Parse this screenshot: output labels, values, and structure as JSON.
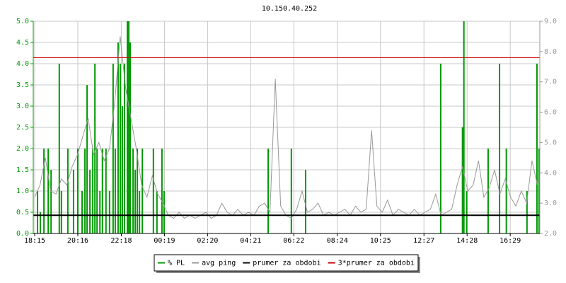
{
  "chart_data": {
    "type": "ping",
    "title": "10.150.40.252",
    "xlim": [
      -4,
      1417
    ],
    "xticks": [
      {
        "value": 0,
        "label": "18:15"
      },
      {
        "value": 121,
        "label": "20:16"
      },
      {
        "value": 243,
        "label": "22:18"
      },
      {
        "value": 364,
        "label": "00:19"
      },
      {
        "value": 485,
        "label": "02:20"
      },
      {
        "value": 606,
        "label": "04:21"
      },
      {
        "value": 727,
        "label": "06:22"
      },
      {
        "value": 849,
        "label": "08:24"
      },
      {
        "value": 970,
        "label": "10:25"
      },
      {
        "value": 1092,
        "label": "12:27"
      },
      {
        "value": 1213,
        "label": "14:28"
      },
      {
        "value": 1334,
        "label": "16:29"
      }
    ],
    "ylim": [
      0,
      5
    ],
    "yticks": [
      {
        "value": 0,
        "label": "0.0"
      },
      {
        "value": 0.5,
        "label": "0.5"
      },
      {
        "value": 1,
        "label": "1.0"
      },
      {
        "value": 1.5,
        "label": "1.5"
      },
      {
        "value": 2,
        "label": "2.0"
      },
      {
        "value": 2.5,
        "label": "2.5"
      },
      {
        "value": 3,
        "label": "3.0"
      },
      {
        "value": 3.5,
        "label": "3.5"
      },
      {
        "value": 4,
        "label": "4.0"
      },
      {
        "value": 4.5,
        "label": "4.5"
      },
      {
        "value": 5,
        "label": "5.0"
      }
    ],
    "y2lim": [
      2,
      9
    ],
    "y2ticks": [
      {
        "value": 2,
        "label": "2.0"
      },
      {
        "value": 3,
        "label": "3.0"
      },
      {
        "value": 4,
        "label": "4.0"
      },
      {
        "value": 5,
        "label": "5.0"
      },
      {
        "value": 6,
        "label": "6.0"
      },
      {
        "value": 7,
        "label": "7.0"
      },
      {
        "value": 8,
        "label": "8.0"
      },
      {
        "value": 9,
        "label": "9.0"
      }
    ],
    "grid": true,
    "series": [
      {
        "name": "% PL",
        "kind": "bar",
        "color": "#009900",
        "axis": "y",
        "x": [
          8,
          16,
          26,
          38,
          46,
          69,
          75,
          93,
          109,
          121,
          133,
          141,
          147,
          155,
          163,
          169,
          175,
          183,
          190,
          200,
          210,
          220,
          226,
          234,
          240,
          246,
          252,
          260,
          264,
          268,
          276,
          282,
          288,
          294,
          302,
          333,
          343,
          357,
          363,
          655,
          720,
          760,
          1139,
          1200,
          1204,
          1212,
          1272,
          1304,
          1323,
          1381,
          1409,
          1415
        ],
        "values": [
          1.0,
          0.5,
          2.0,
          2.0,
          1.5,
          4.0,
          1.0,
          2.0,
          1.5,
          2.0,
          1.0,
          2.0,
          3.5,
          1.5,
          2.0,
          4.0,
          2.0,
          1.0,
          2.0,
          2.0,
          1.0,
          4.0,
          2.0,
          4.5,
          4.0,
          3.0,
          4.0,
          5.0,
          5.0,
          4.5,
          2.0,
          1.5,
          2.0,
          1.0,
          2.0,
          2.0,
          1.0,
          2.0,
          1.0,
          2.0,
          2.0,
          1.5,
          4.0,
          2.5,
          5.0,
          1.0,
          2.0,
          4.0,
          2.0,
          1.0,
          4.0,
          2.0
        ]
      },
      {
        "name": "avg ping",
        "kind": "line",
        "color": "#999999",
        "axis": "y2",
        "x": [
          0,
          15,
          30,
          45,
          60,
          75,
          90,
          105,
          120,
          135,
          150,
          165,
          180,
          195,
          210,
          225,
          240,
          255,
          270,
          285,
          300,
          315,
          330,
          345,
          360,
          375,
          390,
          405,
          420,
          435,
          450,
          465,
          480,
          495,
          510,
          525,
          540,
          555,
          570,
          585,
          600,
          615,
          630,
          645,
          660,
          675,
          690,
          705,
          720,
          735,
          750,
          765,
          780,
          795,
          810,
          825,
          840,
          855,
          870,
          885,
          900,
          915,
          930,
          945,
          960,
          975,
          990,
          1005,
          1020,
          1035,
          1050,
          1065,
          1080,
          1095,
          1110,
          1125,
          1140,
          1155,
          1170,
          1185,
          1200,
          1215,
          1230,
          1245,
          1260,
          1275,
          1290,
          1305,
          1320,
          1335,
          1350,
          1365,
          1380,
          1395,
          1410
        ],
        "values": [
          3.2,
          3.6,
          4.5,
          3.4,
          3.3,
          3.8,
          3.6,
          4.2,
          4.6,
          5.2,
          5.8,
          4.6,
          5.0,
          4.4,
          4.8,
          6.4,
          8.5,
          6.8,
          5.8,
          4.8,
          3.6,
          3.2,
          3.9,
          3.3,
          3.0,
          2.6,
          2.5,
          2.7,
          2.5,
          2.6,
          2.5,
          2.6,
          2.7,
          2.5,
          2.6,
          3.0,
          2.7,
          2.6,
          2.8,
          2.6,
          2.7,
          2.6,
          2.9,
          3.0,
          2.7,
          7.1,
          2.9,
          2.6,
          2.5,
          2.8,
          3.4,
          2.7,
          2.8,
          3.0,
          2.6,
          2.7,
          2.6,
          2.7,
          2.8,
          2.6,
          2.9,
          2.7,
          2.8,
          5.4,
          2.9,
          2.7,
          3.1,
          2.6,
          2.8,
          2.7,
          2.6,
          2.8,
          2.6,
          2.7,
          2.8,
          3.3,
          2.6,
          2.7,
          2.8,
          3.6,
          4.2,
          3.4,
          3.6,
          4.4,
          3.2,
          3.5,
          4.1,
          3.3,
          3.8,
          3.2,
          2.9,
          3.4,
          3.0,
          4.4,
          3.6
        ]
      },
      {
        "name": "prumer za obdobi",
        "kind": "hline",
        "color": "#000000",
        "axis": "y2",
        "value": 2.6
      },
      {
        "name": "3*prumer za obdobi",
        "kind": "hline",
        "color": "#cc0000",
        "axis": "y2",
        "value": 7.8
      }
    ]
  }
}
